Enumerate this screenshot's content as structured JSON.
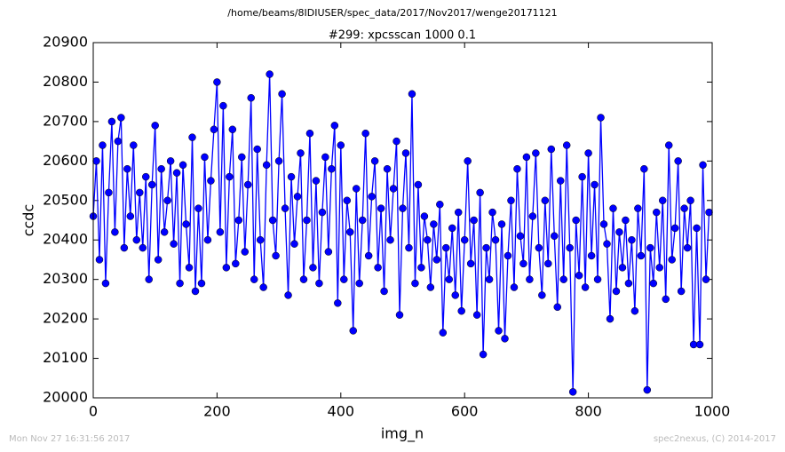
{
  "chart_data": {
    "type": "line",
    "header": "/home/beams/8IDIUSER/spec_data/2017/Nov2017/wenge20171121",
    "title": "#299: xpcsscan 1000 0.1",
    "xlabel": "img_n",
    "ylabel": "ccdc",
    "footer_left": "Mon Nov 27 16:31:56 2017",
    "footer_right": "spec2nexus, (C) 2014-2017",
    "xlim": [
      0,
      1000
    ],
    "xticks": [
      0,
      200,
      400,
      600,
      800,
      1000
    ],
    "ylim": [
      20000,
      20900
    ],
    "yticks": [
      20000,
      20100,
      20200,
      20300,
      20400,
      20500,
      20600,
      20700,
      20800,
      20900
    ],
    "x": [
      0,
      5,
      10,
      15,
      20,
      25,
      30,
      35,
      40,
      45,
      50,
      55,
      60,
      65,
      70,
      75,
      80,
      85,
      90,
      95,
      100,
      105,
      110,
      115,
      120,
      125,
      130,
      135,
      140,
      145,
      150,
      155,
      160,
      165,
      170,
      175,
      180,
      185,
      190,
      195,
      200,
      205,
      210,
      215,
      220,
      225,
      230,
      235,
      240,
      245,
      250,
      255,
      260,
      265,
      270,
      275,
      280,
      285,
      290,
      295,
      300,
      305,
      310,
      315,
      320,
      325,
      330,
      335,
      340,
      345,
      350,
      355,
      360,
      365,
      370,
      375,
      380,
      385,
      390,
      395,
      400,
      405,
      410,
      415,
      420,
      425,
      430,
      435,
      440,
      445,
      450,
      455,
      460,
      465,
      470,
      475,
      480,
      485,
      490,
      495,
      500,
      505,
      510,
      515,
      520,
      525,
      530,
      535,
      540,
      545,
      550,
      555,
      560,
      565,
      570,
      575,
      580,
      585,
      590,
      595,
      600,
      605,
      610,
      615,
      620,
      625,
      630,
      635,
      640,
      645,
      650,
      655,
      660,
      665,
      670,
      675,
      680,
      685,
      690,
      695,
      700,
      705,
      710,
      715,
      720,
      725,
      730,
      735,
      740,
      745,
      750,
      755,
      760,
      765,
      770,
      775,
      780,
      785,
      790,
      795,
      800,
      805,
      810,
      815,
      820,
      825,
      830,
      835,
      840,
      845,
      850,
      855,
      860,
      865,
      870,
      875,
      880,
      885,
      890,
      895,
      900,
      905,
      910,
      915,
      920,
      925,
      930,
      935,
      940,
      945,
      950,
      955,
      960,
      965,
      970,
      975,
      980,
      985,
      990,
      995
    ],
    "series": [
      {
        "name": "ccdc",
        "color": "#0000ff",
        "values": [
          20460,
          20600,
          20350,
          20640,
          20290,
          20520,
          20700,
          20420,
          20650,
          20710,
          20380,
          20580,
          20460,
          20640,
          20400,
          20520,
          20380,
          20560,
          20300,
          20540,
          20690,
          20350,
          20580,
          20420,
          20500,
          20600,
          20390,
          20570,
          20290,
          20590,
          20440,
          20330,
          20660,
          20270,
          20480,
          20290,
          20610,
          20400,
          20550,
          20680,
          20800,
          20420,
          20740,
          20330,
          20560,
          20680,
          20340,
          20450,
          20610,
          20370,
          20540,
          20760,
          20300,
          20630,
          20400,
          20280,
          20590,
          20820,
          20450,
          20360,
          20600,
          20770,
          20480,
          20260,
          20560,
          20390,
          20510,
          20620,
          20300,
          20450,
          20670,
          20330,
          20550,
          20290,
          20470,
          20610,
          20370,
          20580,
          20690,
          20240,
          20640,
          20300,
          20500,
          20420,
          20170,
          20530,
          20290,
          20450,
          20670,
          20360,
          20510,
          20600,
          20330,
          20480,
          20270,
          20580,
          20400,
          20530,
          20650,
          20210,
          20480,
          20620,
          20380,
          20770,
          20290,
          20540,
          20330,
          20460,
          20400,
          20280,
          20440,
          20350,
          20490,
          20165,
          20380,
          20300,
          20430,
          20260,
          20470,
          20220,
          20400,
          20600,
          20340,
          20450,
          20210,
          20520,
          20110,
          20380,
          20300,
          20470,
          20400,
          20170,
          20440,
          20150,
          20360,
          20500,
          20280,
          20580,
          20410,
          20340,
          20610,
          20300,
          20460,
          20620,
          20380,
          20260,
          20500,
          20340,
          20630,
          20410,
          20230,
          20550,
          20300,
          20640,
          20380,
          20015,
          20450,
          20310,
          20560,
          20280,
          20620,
          20360,
          20540,
          20300,
          20710,
          20440,
          20390,
          20200,
          20480,
          20270,
          20420,
          20330,
          20450,
          20290,
          20400,
          20220,
          20480,
          20360,
          20580,
          20020,
          20380,
          20290,
          20470,
          20330,
          20500,
          20250,
          20640,
          20350,
          20430,
          20600,
          20270,
          20480,
          20380,
          20500,
          20135,
          20430,
          20135,
          20590,
          20300,
          20470
        ]
      }
    ]
  }
}
